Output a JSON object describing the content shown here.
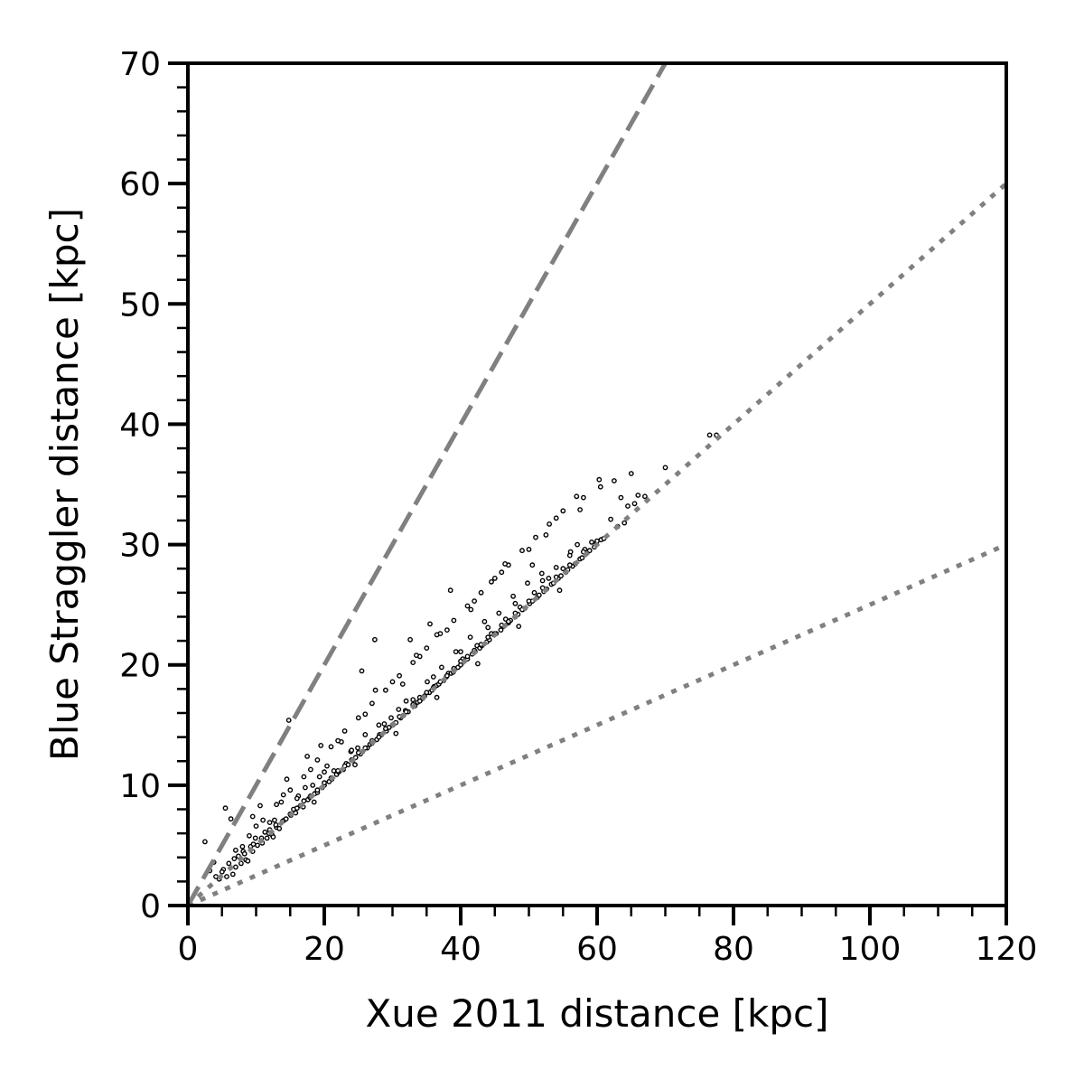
{
  "chart_data": {
    "type": "scatter",
    "title": "",
    "xlabel": "Xue 2011 distance [kpc]",
    "ylabel": "Blue Straggler distance [kpc]",
    "xlim": [
      0,
      120
    ],
    "ylim": [
      0,
      70
    ],
    "x_ticks": [
      0,
      20,
      40,
      60,
      80,
      100,
      120
    ],
    "y_ticks": [
      0,
      10,
      20,
      30,
      40,
      50,
      60,
      70
    ],
    "x_tick_labels": [
      "0",
      "20",
      "40",
      "60",
      "80",
      "100",
      "120"
    ],
    "y_tick_labels": [
      "0",
      "10",
      "20",
      "30",
      "40",
      "50",
      "60",
      "70"
    ],
    "x_minor_step": 5,
    "y_minor_step": 2,
    "grid": false,
    "legend": "none",
    "reference_lines": [
      {
        "style": "dashed",
        "slope": 1.0,
        "color": "#808080"
      },
      {
        "style": "dotted",
        "slope": 0.5,
        "color": "#808080"
      },
      {
        "style": "dotted",
        "slope": 0.25,
        "color": "#808080"
      }
    ],
    "series": [
      {
        "marker": "small-hollow-circle",
        "color": "#000000",
        "points": [
          [
            2.5,
            5.3
          ],
          [
            3.2,
            2.9
          ],
          [
            3.8,
            3.6
          ],
          [
            4.1,
            2.4
          ],
          [
            4.6,
            2.2
          ],
          [
            5.2,
            3.0
          ],
          [
            5.5,
            8.1
          ],
          [
            5.7,
            2.4
          ],
          [
            6.0,
            3.5
          ],
          [
            6.3,
            7.2
          ],
          [
            6.6,
            2.6
          ],
          [
            7.0,
            3.2
          ],
          [
            7.4,
            4.1
          ],
          [
            7.8,
            3.5
          ],
          [
            8.1,
            4.5
          ],
          [
            8.5,
            3.8
          ],
          [
            8.8,
            3.7
          ],
          [
            9.2,
            4.9
          ],
          [
            9.5,
            4.5
          ],
          [
            9.9,
            5.6
          ],
          [
            10.2,
            5.0
          ],
          [
            10.6,
            8.3
          ],
          [
            10.9,
            5.2
          ],
          [
            11.3,
            6.1
          ],
          [
            11.6,
            5.6
          ],
          [
            12.0,
            6.3
          ],
          [
            12.3,
            5.9
          ],
          [
            12.7,
            7.1
          ],
          [
            13.0,
            6.5
          ],
          [
            13.4,
            6.4
          ],
          [
            13.7,
            8.6
          ],
          [
            14.1,
            7.1
          ],
          [
            14.4,
            7.2
          ],
          [
            14.8,
            15.4
          ],
          [
            15.1,
            7.5
          ],
          [
            15.5,
            8.0
          ],
          [
            15.8,
            7.7
          ],
          [
            16.2,
            9.1
          ],
          [
            16.5,
            8.3
          ],
          [
            16.9,
            8.2
          ],
          [
            17.2,
            9.8
          ],
          [
            17.6,
            8.8
          ],
          [
            17.9,
            9.0
          ],
          [
            18.3,
            10.0
          ],
          [
            18.6,
            9.3
          ],
          [
            19.0,
            9.4
          ],
          [
            19.3,
            10.7
          ],
          [
            19.7,
            9.8
          ],
          [
            20.0,
            10.0
          ],
          [
            20.4,
            11.6
          ],
          [
            20.7,
            10.3
          ],
          [
            21.1,
            10.5
          ],
          [
            21.4,
            11.2
          ],
          [
            21.8,
            10.9
          ],
          [
            22.1,
            11.1
          ],
          [
            22.5,
            13.6
          ],
          [
            22.8,
            11.3
          ],
          [
            23.2,
            11.8
          ],
          [
            23.5,
            11.7
          ],
          [
            23.9,
            12.8
          ],
          [
            24.2,
            12.1
          ],
          [
            24.6,
            12.3
          ],
          [
            24.9,
            13.1
          ],
          [
            25.3,
            12.6
          ],
          [
            25.6,
            12.8
          ],
          [
            26.0,
            14.2
          ],
          [
            26.3,
            13.1
          ],
          [
            26.7,
            13.4
          ],
          [
            27.0,
            13.5
          ],
          [
            27.4,
            22.1
          ],
          [
            27.7,
            13.8
          ],
          [
            28.1,
            14.2
          ],
          [
            28.4,
            14.2
          ],
          [
            28.8,
            15.1
          ],
          [
            29.1,
            14.5
          ],
          [
            29.5,
            14.8
          ],
          [
            29.8,
            15.6
          ],
          [
            30.2,
            15.1
          ],
          [
            30.5,
            15.2
          ],
          [
            30.9,
            16.3
          ],
          [
            31.2,
            15.6
          ],
          [
            31.6,
            15.8
          ],
          [
            31.9,
            16.2
          ],
          [
            32.3,
            16.1
          ],
          [
            32.6,
            22.1
          ],
          [
            33.0,
            17.1
          ],
          [
            33.3,
            16.6
          ],
          [
            33.7,
            16.9
          ],
          [
            34.0,
            17.3
          ],
          [
            34.4,
            17.2
          ],
          [
            34.7,
            17.4
          ],
          [
            35.1,
            18.6
          ],
          [
            35.4,
            17.7
          ],
          [
            35.8,
            17.9
          ],
          [
            36.1,
            18.2
          ],
          [
            36.5,
            18.3
          ],
          [
            36.8,
            18.4
          ],
          [
            37.2,
            19.8
          ],
          [
            37.5,
            18.7
          ],
          [
            37.9,
            19.0
          ],
          [
            38.2,
            19.3
          ],
          [
            38.6,
            19.3
          ],
          [
            38.9,
            19.4
          ],
          [
            39.3,
            21.1
          ],
          [
            39.6,
            19.8
          ],
          [
            40.0,
            20.0
          ],
          [
            40.3,
            20.5
          ],
          [
            40.7,
            20.4
          ],
          [
            41.0,
            20.5
          ],
          [
            41.4,
            22.3
          ],
          [
            41.7,
            20.9
          ],
          [
            42.1,
            21.1
          ],
          [
            42.4,
            21.6
          ],
          [
            42.8,
            21.4
          ],
          [
            43.1,
            21.6
          ],
          [
            43.5,
            23.6
          ],
          [
            43.8,
            21.9
          ],
          [
            44.2,
            22.1
          ],
          [
            44.5,
            22.6
          ],
          [
            44.9,
            22.5
          ],
          [
            45.2,
            22.6
          ],
          [
            45.6,
            24.3
          ],
          [
            45.9,
            22.9
          ],
          [
            46.3,
            23.2
          ],
          [
            46.6,
            23.8
          ],
          [
            47.0,
            23.5
          ],
          [
            47.3,
            23.7
          ],
          [
            47.7,
            25.7
          ],
          [
            48.0,
            24.0
          ],
          [
            48.4,
            24.2
          ],
          [
            48.7,
            24.8
          ],
          [
            49.1,
            24.6
          ],
          [
            49.4,
            24.7
          ],
          [
            49.8,
            26.8
          ],
          [
            50.1,
            25.1
          ],
          [
            50.5,
            25.3
          ],
          [
            50.8,
            26.0
          ],
          [
            51.2,
            25.6
          ],
          [
            51.5,
            25.8
          ],
          [
            51.9,
            27.6
          ],
          [
            52.2,
            26.1
          ],
          [
            52.6,
            26.3
          ],
          [
            52.9,
            27.2
          ],
          [
            53.3,
            26.7
          ],
          [
            53.6,
            26.8
          ],
          [
            54.0,
            28.1
          ],
          [
            54.3,
            27.2
          ],
          [
            54.7,
            27.4
          ],
          [
            55.0,
            28.0
          ],
          [
            55.4,
            27.7
          ],
          [
            55.7,
            27.9
          ],
          [
            56.1,
            29.4
          ],
          [
            56.4,
            28.2
          ],
          [
            56.8,
            28.4
          ],
          [
            57.1,
            30.0
          ],
          [
            57.5,
            28.8
          ],
          [
            57.8,
            28.9
          ],
          [
            58.2,
            29.6
          ],
          [
            58.5,
            29.3
          ],
          [
            58.9,
            29.5
          ],
          [
            59.2,
            30.2
          ],
          [
            59.6,
            29.8
          ],
          [
            59.9,
            30.1
          ],
          [
            60.3,
            35.4
          ],
          [
            60.6,
            30.4
          ],
          [
            61.0,
            30.5
          ],
          [
            62.0,
            32.1
          ],
          [
            62.5,
            35.3
          ],
          [
            63.0,
            31.5
          ],
          [
            64.0,
            31.8
          ],
          [
            64.5,
            33.2
          ],
          [
            65.0,
            35.9
          ],
          [
            65.5,
            33.4
          ],
          [
            66.0,
            34.1
          ],
          [
            67.0,
            34.0
          ],
          [
            70.0,
            36.4
          ],
          [
            76.5,
            39.1
          ],
          [
            77.5,
            39.1
          ],
          [
            5.0,
            2.8
          ],
          [
            6.8,
            3.9
          ],
          [
            8.3,
            4.3
          ],
          [
            9.6,
            5.1
          ],
          [
            10.8,
            5.6
          ],
          [
            11.9,
            6.0
          ],
          [
            12.9,
            6.7
          ],
          [
            13.9,
            7.0
          ],
          [
            15.0,
            7.6
          ],
          [
            16.0,
            8.1
          ],
          [
            17.0,
            8.7
          ],
          [
            18.0,
            9.1
          ],
          [
            19.0,
            9.6
          ],
          [
            20.0,
            10.2
          ],
          [
            21.0,
            10.6
          ],
          [
            22.0,
            11.2
          ],
          [
            23.0,
            11.6
          ],
          [
            24.0,
            12.1
          ],
          [
            25.0,
            12.7
          ],
          [
            26.0,
            13.1
          ],
          [
            27.0,
            13.7
          ],
          [
            28.0,
            14.0
          ],
          [
            29.0,
            14.7
          ],
          [
            30.0,
            15.0
          ],
          [
            31.0,
            15.7
          ],
          [
            32.0,
            16.1
          ],
          [
            33.0,
            16.7
          ],
          [
            34.0,
            17.0
          ],
          [
            35.0,
            17.7
          ],
          [
            36.0,
            18.1
          ],
          [
            37.0,
            18.6
          ],
          [
            38.0,
            19.1
          ],
          [
            39.0,
            19.7
          ],
          [
            40.0,
            20.3
          ],
          [
            41.0,
            20.7
          ],
          [
            42.0,
            21.2
          ],
          [
            43.0,
            21.7
          ],
          [
            44.0,
            22.3
          ],
          [
            45.0,
            22.6
          ],
          [
            46.0,
            23.3
          ],
          [
            47.0,
            23.6
          ],
          [
            48.0,
            24.3
          ],
          [
            49.0,
            24.6
          ],
          [
            50.0,
            25.3
          ],
          [
            52.0,
            26.4
          ],
          [
            54.0,
            27.3
          ],
          [
            56.0,
            28.3
          ],
          [
            58.0,
            29.4
          ],
          [
            60.0,
            30.3
          ],
          [
            7.0,
            4.6
          ],
          [
            9.0,
            5.8
          ],
          [
            11.0,
            7.1
          ],
          [
            13.0,
            8.4
          ],
          [
            15.0,
            9.6
          ],
          [
            17.0,
            10.7
          ],
          [
            19.0,
            12.1
          ],
          [
            21.0,
            13.2
          ],
          [
            23.0,
            14.5
          ],
          [
            25.0,
            15.6
          ],
          [
            27.0,
            16.8
          ],
          [
            29.0,
            17.9
          ],
          [
            31.0,
            19.1
          ],
          [
            33.0,
            20.2
          ],
          [
            35.0,
            21.4
          ],
          [
            37.0,
            22.6
          ],
          [
            39.0,
            23.7
          ],
          [
            41.0,
            24.9
          ],
          [
            43.0,
            26.0
          ],
          [
            45.0,
            27.2
          ],
          [
            47.0,
            28.3
          ],
          [
            49.0,
            29.5
          ],
          [
            51.0,
            30.6
          ],
          [
            53.0,
            31.7
          ],
          [
            55.0,
            32.8
          ],
          [
            57.0,
            34.0
          ],
          [
            8.0,
            4.9
          ],
          [
            12.0,
            6.9
          ],
          [
            16.0,
            8.9
          ],
          [
            20.0,
            11.1
          ],
          [
            24.0,
            12.9
          ],
          [
            28.0,
            15.0
          ],
          [
            32.0,
            17.0
          ],
          [
            36.0,
            19.0
          ],
          [
            40.0,
            21.1
          ],
          [
            44.0,
            23.1
          ],
          [
            48.0,
            25.1
          ],
          [
            52.0,
            27.0
          ],
          [
            56.0,
            29.1
          ],
          [
            10.0,
            6.6
          ],
          [
            14.0,
            9.2
          ],
          [
            18.0,
            11.3
          ],
          [
            22.0,
            13.7
          ],
          [
            26.0,
            15.9
          ],
          [
            30.0,
            18.6
          ],
          [
            34.0,
            20.7
          ],
          [
            38.0,
            22.9
          ],
          [
            42.0,
            25.3
          ],
          [
            46.0,
            27.7
          ],
          [
            50.0,
            29.6
          ],
          [
            54.0,
            32.2
          ],
          [
            58.0,
            33.9
          ],
          [
            12.5,
            5.7
          ],
          [
            18.5,
            8.6
          ],
          [
            24.5,
            11.7
          ],
          [
            30.5,
            14.3
          ],
          [
            36.5,
            17.3
          ],
          [
            42.5,
            20.1
          ],
          [
            48.5,
            23.2
          ],
          [
            54.5,
            26.2
          ],
          [
            17.5,
            12.4
          ],
          [
            25.5,
            19.5
          ],
          [
            33.5,
            20.8
          ],
          [
            38.5,
            26.2
          ],
          [
            44.5,
            26.9
          ],
          [
            50.5,
            28.3
          ],
          [
            9.5,
            7.4
          ],
          [
            14.5,
            10.5
          ],
          [
            19.5,
            13.3
          ],
          [
            27.5,
            17.9
          ],
          [
            31.5,
            18.4
          ],
          [
            35.5,
            23.4
          ],
          [
            36.5,
            22.5
          ],
          [
            41.5,
            24.6
          ],
          [
            46.5,
            28.4
          ],
          [
            52.5,
            30.8
          ],
          [
            57.5,
            32.9
          ],
          [
            60.5,
            34.8
          ],
          [
            63.5,
            33.9
          ]
        ]
      }
    ]
  }
}
